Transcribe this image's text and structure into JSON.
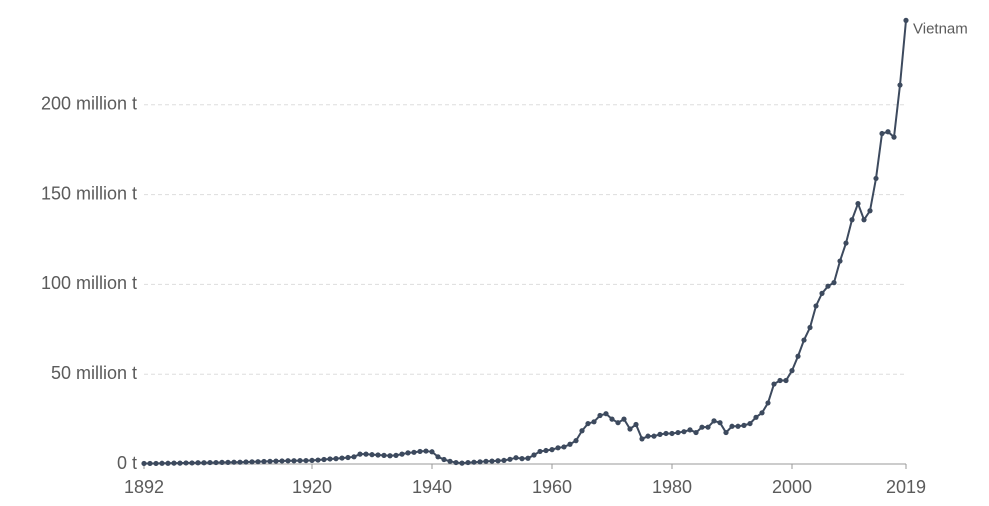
{
  "chart_data": {
    "type": "line",
    "x": [
      1892,
      1893,
      1894,
      1895,
      1896,
      1897,
      1898,
      1899,
      1900,
      1901,
      1902,
      1903,
      1904,
      1905,
      1906,
      1907,
      1908,
      1909,
      1910,
      1911,
      1912,
      1913,
      1914,
      1915,
      1916,
      1917,
      1918,
      1919,
      1920,
      1921,
      1922,
      1923,
      1924,
      1925,
      1926,
      1927,
      1928,
      1929,
      1930,
      1931,
      1932,
      1933,
      1934,
      1935,
      1936,
      1937,
      1938,
      1939,
      1940,
      1941,
      1942,
      1943,
      1944,
      1945,
      1946,
      1947,
      1948,
      1949,
      1950,
      1951,
      1952,
      1953,
      1954,
      1955,
      1956,
      1957,
      1958,
      1959,
      1960,
      1961,
      1962,
      1963,
      1964,
      1965,
      1966,
      1967,
      1968,
      1969,
      1970,
      1971,
      1972,
      1973,
      1974,
      1975,
      1976,
      1977,
      1978,
      1979,
      1980,
      1981,
      1982,
      1983,
      1984,
      1985,
      1986,
      1987,
      1988,
      1989,
      1990,
      1991,
      1992,
      1993,
      1994,
      1995,
      1996,
      1997,
      1998,
      1999,
      2000,
      2001,
      2002,
      2003,
      2004,
      2005,
      2006,
      2007,
      2008,
      2009,
      2010,
      2011,
      2012,
      2013,
      2014,
      2015,
      2016,
      2017,
      2018,
      2019
    ],
    "series": [
      {
        "name": "Vietnam",
        "color": "#3d4a5e",
        "values": [
          0.3,
          0.3,
          0.3,
          0.4,
          0.4,
          0.5,
          0.5,
          0.6,
          0.6,
          0.7,
          0.7,
          0.8,
          0.8,
          0.9,
          0.9,
          1,
          1,
          1.1,
          1.2,
          1.3,
          1.4,
          1.5,
          1.6,
          1.7,
          1.8,
          1.8,
          1.9,
          1.9,
          2,
          2.2,
          2.5,
          2.8,
          3,
          3.3,
          3.6,
          4,
          5.5,
          5.5,
          5.2,
          5,
          4.8,
          4.6,
          4.8,
          5.5,
          6.2,
          6.5,
          7,
          7.2,
          6.8,
          4,
          2.5,
          1.5,
          0.8,
          0.5,
          0.8,
          1,
          1.2,
          1.5,
          1.6,
          1.8,
          2,
          2.6,
          3.5,
          3,
          3.2,
          5,
          7,
          7.5,
          8,
          9,
          9.5,
          11,
          13,
          18.5,
          22.5,
          23.5,
          27,
          28,
          25,
          23,
          25,
          19.5,
          22,
          14,
          15.5,
          15.5,
          16.5,
          17,
          17,
          17.5,
          18,
          19,
          17.5,
          20.5,
          20.5,
          24,
          23,
          17.5,
          21,
          21,
          21.5,
          22.5,
          26,
          28.5,
          34,
          44.5,
          46.5,
          46.5,
          52,
          60,
          69,
          76,
          88,
          95,
          99,
          101,
          113,
          123,
          136,
          145,
          136,
          141,
          159,
          184,
          185,
          182,
          211,
          247
        ]
      }
    ],
    "xlim": [
      1892,
      2019
    ],
    "xticks": [
      1892,
      1920,
      1940,
      1960,
      1980,
      2000,
      2019
    ],
    "ylim": [
      0,
      250
    ],
    "yticks": [
      {
        "value": 0,
        "label": "0 t"
      },
      {
        "value": 50,
        "label": "50 million t"
      },
      {
        "value": 100,
        "label": "100 million t"
      },
      {
        "value": 150,
        "label": "150 million t"
      },
      {
        "value": 200,
        "label": "200 million t"
      }
    ],
    "grid": true
  }
}
